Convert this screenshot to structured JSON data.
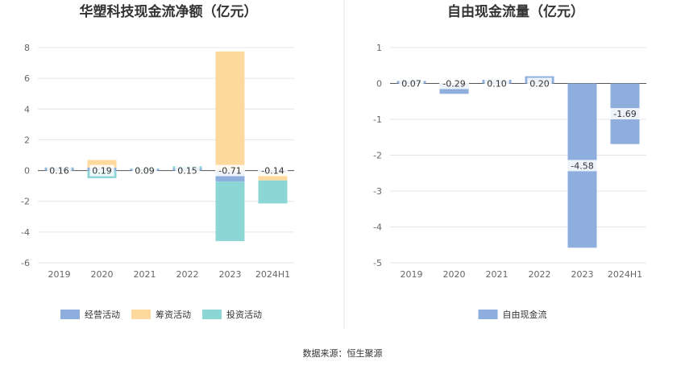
{
  "colors": {
    "operating": "#8eaedd",
    "financing": "#fdd99e",
    "investing": "#8cd6d6",
    "free_cash_flow": "#8eaedd",
    "grid": "#e4e4e4",
    "divider": "#e8e8e8"
  },
  "chart_data": [
    {
      "type": "bar",
      "title": "华塑科技现金流净额（亿元）",
      "categories": [
        "2019",
        "2020",
        "2021",
        "2022",
        "2023",
        "2024H1"
      ],
      "ylim": [
        -6,
        8
      ],
      "yticks": [
        8,
        6,
        4,
        2,
        0,
        -2,
        -4,
        -6
      ],
      "grid": true,
      "legend_position": "bottom",
      "series": [
        {
          "name": "经营活动",
          "values": [
            0.16,
            0.19,
            0.09,
            0.15,
            -0.71,
            -0.14
          ],
          "labels": [
            "0.16",
            "0.19",
            "0.09",
            "0.15",
            "-0.71",
            "-0.14"
          ]
        },
        {
          "name": "筹资活动",
          "values": [
            0,
            0.5,
            0,
            0,
            7.75,
            -0.5
          ]
        },
        {
          "name": "投资活动",
          "values": [
            0.05,
            -0.5,
            0.05,
            0.13,
            -3.88,
            -1.5
          ]
        }
      ]
    },
    {
      "type": "bar",
      "title": "自由现金流量（亿元）",
      "categories": [
        "2019",
        "2020",
        "2021",
        "2022",
        "2023",
        "2024H1"
      ],
      "ylim": [
        -5,
        1
      ],
      "yticks": [
        1,
        0,
        -1,
        -2,
        -3,
        -4,
        -5
      ],
      "grid": true,
      "legend_position": "bottom",
      "series": [
        {
          "name": "自由现金流",
          "values": [
            0.07,
            -0.29,
            0.1,
            0.2,
            -4.58,
            -1.69
          ],
          "labels": [
            "0.07",
            "-0.29",
            "0.10",
            "0.20",
            "-4.58",
            "-1.69"
          ]
        }
      ]
    }
  ],
  "footer": {
    "source": "数据来源：恒生聚源"
  }
}
